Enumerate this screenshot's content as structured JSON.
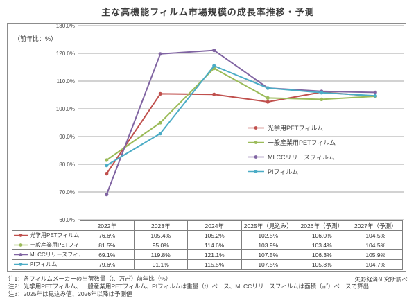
{
  "title": "主な高機能フィルム市場規模の成長率推移・予測",
  "source": "矢野経済研究所調べ",
  "chart_data": {
    "type": "line",
    "ylabel": "（前年比：%）",
    "categories": [
      "2022年",
      "2023年",
      "2024年",
      "2025年（見込み）",
      "2026年（予測）",
      "2027年（予測）"
    ],
    "series": [
      {
        "name": "光学用PETフィルム",
        "color": "#C0504D",
        "values": [
          76.6,
          105.4,
          105.2,
          102.5,
          106.0,
          104.5
        ]
      },
      {
        "name": "一般産業用PETフィルム",
        "color": "#9BBB59",
        "values": [
          81.5,
          95.0,
          114.6,
          103.9,
          103.4,
          104.5
        ]
      },
      {
        "name": "MLCCリリースフィルム",
        "color": "#8064A2",
        "values": [
          69.1,
          119.8,
          121.1,
          107.5,
          106.3,
          105.9
        ]
      },
      {
        "name": "PIフィルム",
        "color": "#4BACC6",
        "values": [
          79.6,
          91.1,
          115.5,
          107.5,
          105.8,
          104.7
        ]
      }
    ],
    "ylim": [
      60,
      130
    ],
    "ytick_step": 10,
    "ytick_suffix": "%",
    "grid": true,
    "gridline_color": "#a6a6a6",
    "legend_position": "inside-right",
    "value_format": "one-decimal-percent"
  },
  "footnotes": [
    "注1：各フィルムメーカーの出荷数量（t、万㎡）前年比（%）",
    "注2：光学用PETフィルム、一般産業用PETフィルム、PIフィルムは重量（t）ベース、MLCCリリースフィルムは面積（㎡）ベースで算出",
    "注3：2025年は見込み値、2026年以降は予測値"
  ]
}
